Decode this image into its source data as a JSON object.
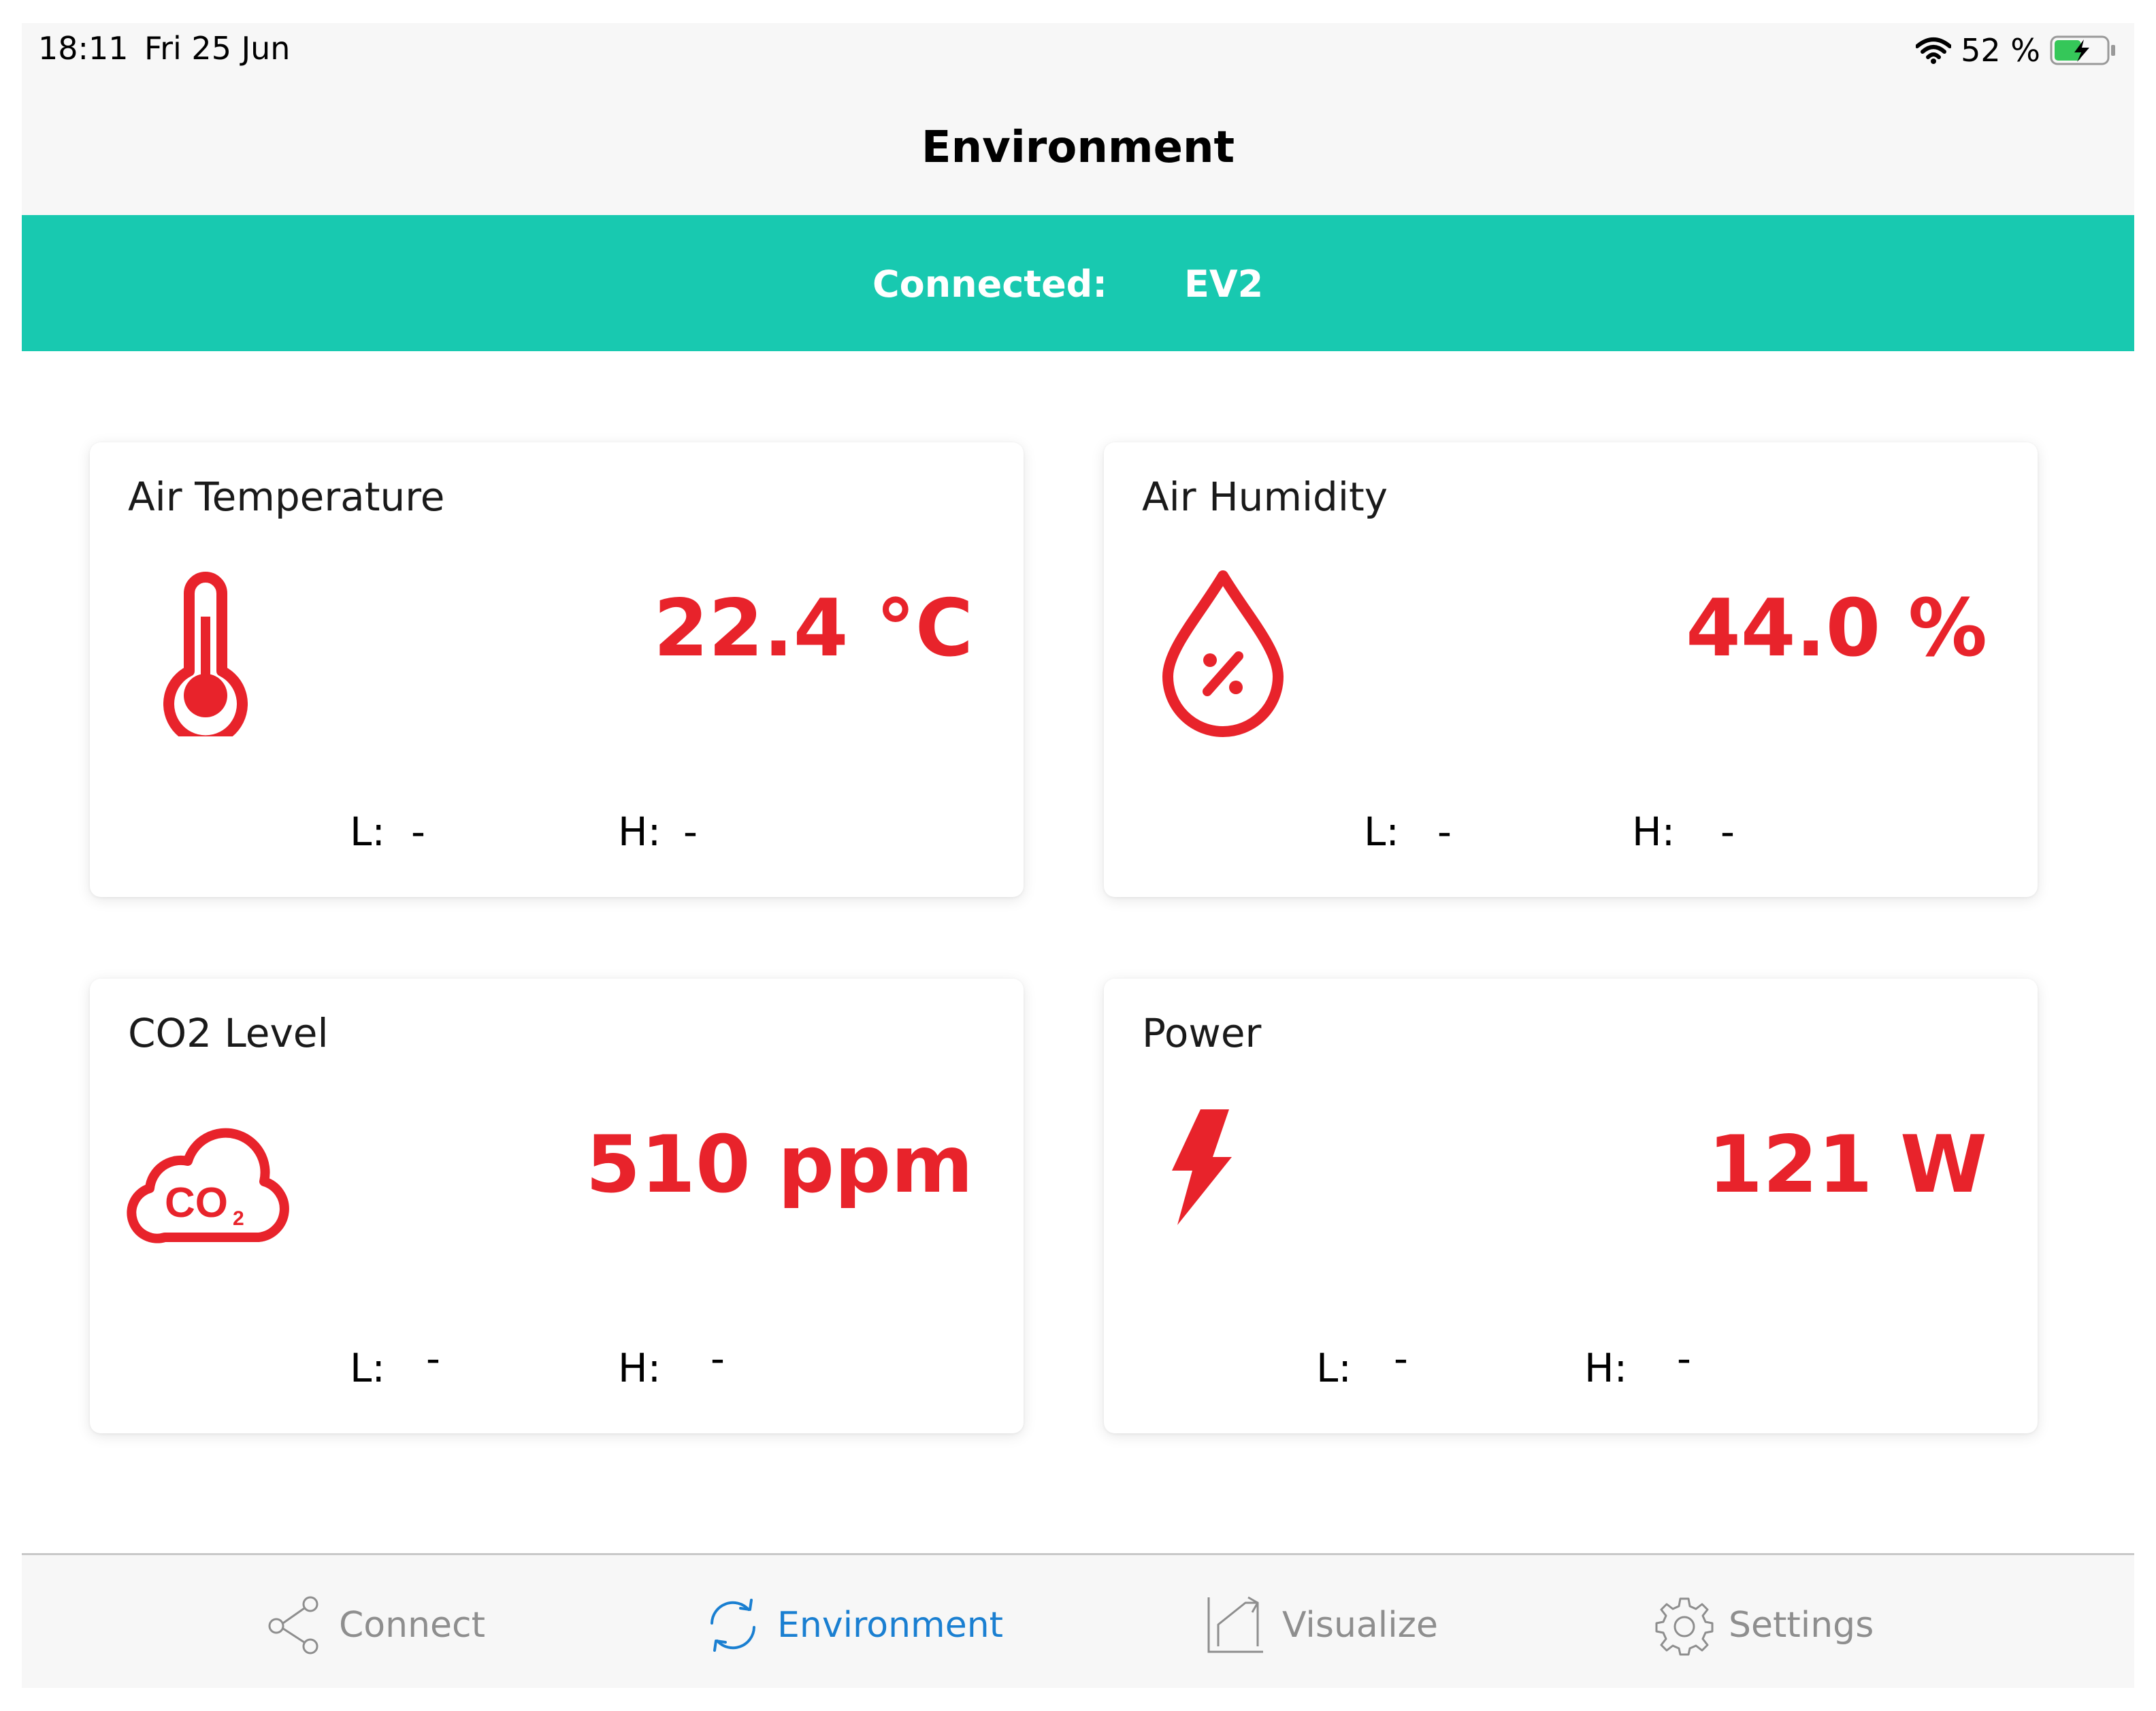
{
  "status_bar": {
    "time": "18:11",
    "date": "Fri 25 Jun",
    "battery_text": "52 %",
    "battery_level_percent": 52,
    "wifi_icon": "wifi-icon",
    "battery_icon": "battery-charging-icon"
  },
  "nav": {
    "title": "Environment"
  },
  "connection": {
    "label": "Connected:",
    "device": "EV2",
    "color": "#18c9b0"
  },
  "cards": [
    {
      "title": "Air Temperature",
      "value": "22.4 °C",
      "low_label": "L:",
      "low_value": "-",
      "high_label": "H:",
      "high_value": "-",
      "icon": "thermometer-icon"
    },
    {
      "title": "Air Humidity",
      "value": "44.0 %",
      "low_label": "L:",
      "low_value": "-",
      "high_label": "H:",
      "high_value": "-",
      "icon": "humidity-drop-icon"
    },
    {
      "title": "CO2 Level",
      "value": "510 ppm",
      "low_label": "L:",
      "low_value": "-",
      "high_label": "H:",
      "high_value": "-",
      "icon": "co2-cloud-icon"
    },
    {
      "title": "Power",
      "value": "121 W",
      "low_label": "L:",
      "low_value": "-",
      "high_label": "H:",
      "high_value": "-",
      "icon": "lightning-icon"
    }
  ],
  "value_color": "#e8232b",
  "tabs": [
    {
      "label": "Connect",
      "icon": "share-nodes-icon",
      "active": false
    },
    {
      "label": "Environment",
      "icon": "refresh-icon",
      "active": true
    },
    {
      "label": "Visualize",
      "icon": "chart-arrow-icon",
      "active": false
    },
    {
      "label": "Settings",
      "icon": "gear-icon",
      "active": false
    }
  ],
  "tab_active_color": "#1a7fd1",
  "tab_inactive_color": "#8e8e8e"
}
